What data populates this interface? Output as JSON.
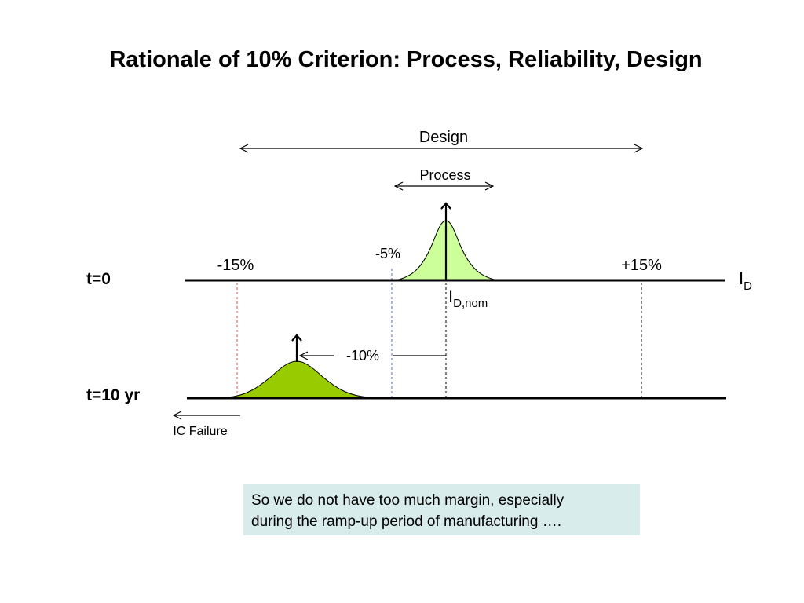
{
  "title": "Rationale of 10% Criterion: Process, Reliability, Design",
  "labels": {
    "design": "Design",
    "process": "Process",
    "t0": "t=0",
    "t10": "t=10 yr",
    "minus15": "-15%",
    "minus5": "-5%",
    "plus15": "+15%",
    "minus10": "-10%",
    "id_main": "I",
    "id_sub": "D",
    "idnom_main": "I",
    "idnom_sub": "D,nom",
    "ic_failure": "IC Failure"
  },
  "note": {
    "line1": "So we do not have too much margin, especially",
    "line2": "during the ramp-up period of manufacturing …."
  },
  "colors": {
    "curve_t0": "#ccff99",
    "curve_t10": "#99cc00",
    "dash_minus15": "#d9534f",
    "dash_minus5": "#5b6bbf",
    "note_bg": "#d9ecec"
  }
}
